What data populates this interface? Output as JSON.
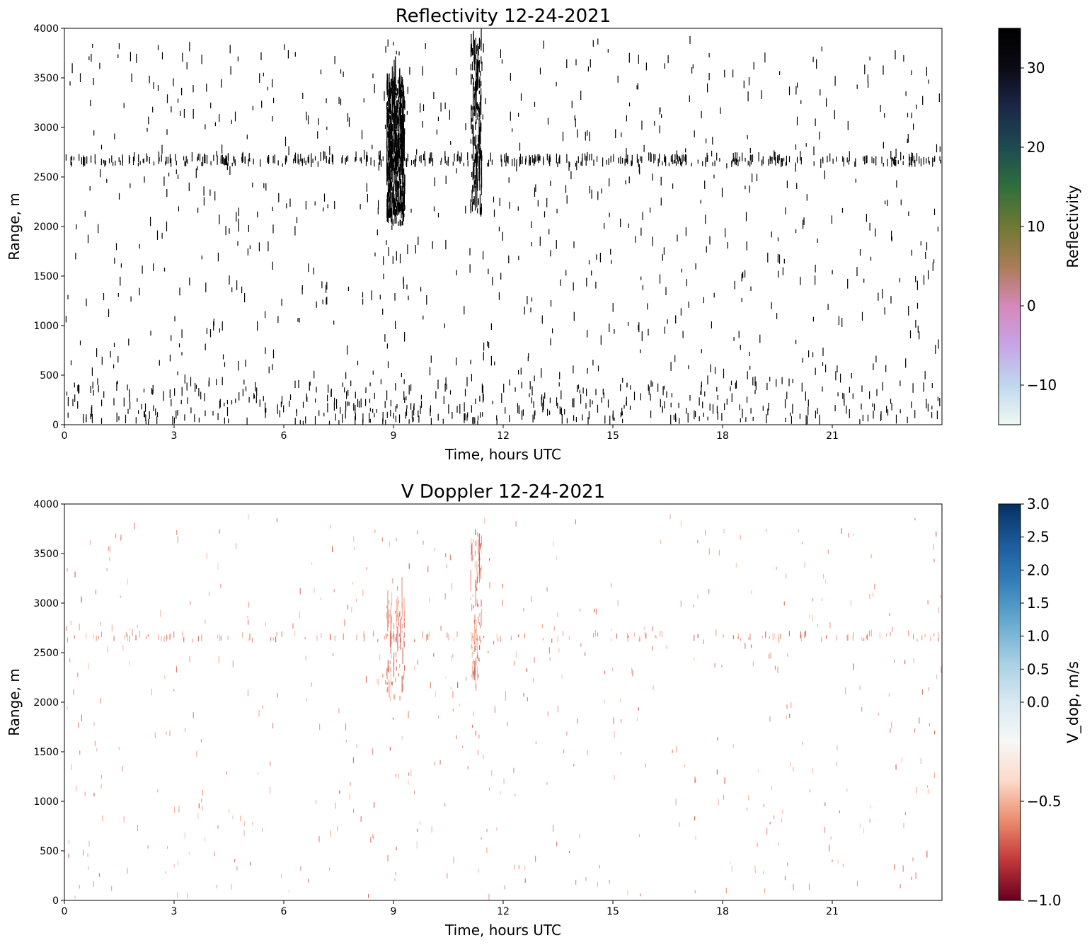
{
  "chart_data": [
    {
      "type": "heatmap",
      "title": "Reflectivity 12-24-2021",
      "xlabel": "Time, hours UTC",
      "ylabel": "Range, m",
      "xlim": [
        0,
        24
      ],
      "ylim": [
        0,
        4000
      ],
      "xticks": [
        "0",
        "3",
        "6",
        "9",
        "12",
        "15",
        "18",
        "21"
      ],
      "yticks": [
        "0",
        "500",
        "1000",
        "1500",
        "2000",
        "2500",
        "3000",
        "3500",
        "4000"
      ],
      "colorbar": {
        "label": "Reflectivity",
        "colormap": "cubehelix_r",
        "min": -15,
        "max": 35,
        "ticks": [
          "−10",
          "0",
          "10",
          "20",
          "30"
        ],
        "tick_values": [
          -10,
          0,
          10,
          20,
          30
        ],
        "colors": [
          "#edf8f2",
          "#c0d8ee",
          "#c5a4e6",
          "#d688b9",
          "#a97c55",
          "#6f7934",
          "#2f6f3b",
          "#1d4b52",
          "#1b2748",
          "#0b0a14",
          "#000000"
        ]
      },
      "features": [
        {
          "name": "dense echo column",
          "time_start": 8.8,
          "time_end": 9.3,
          "range_start": 2000,
          "range_end": 3450
        },
        {
          "name": "echo column",
          "time_start": 11.1,
          "time_end": 11.4,
          "range_start": 2100,
          "range_end": 3850
        },
        {
          "name": "horizontal band",
          "time_start": 0,
          "time_end": 24,
          "range_start": 2600,
          "range_end": 2670
        },
        {
          "name": "near-surface clutter",
          "time_start": 0,
          "time_end": 24,
          "range_start": 0,
          "range_end": 400
        },
        {
          "name": "sparse scattered echoes",
          "time_start": 0,
          "time_end": 24,
          "range_start": 0,
          "range_end": 3850
        }
      ]
    },
    {
      "type": "heatmap",
      "title": "V Doppler 12-24-2021",
      "xlabel": "Time, hours UTC",
      "ylabel": "Range, m",
      "xlim": [
        0,
        24
      ],
      "ylim": [
        0,
        4000
      ],
      "xticks": [
        "0",
        "3",
        "6",
        "9",
        "12",
        "15",
        "18",
        "21"
      ],
      "yticks": [
        "0",
        "500",
        "1000",
        "1500",
        "2000",
        "2500",
        "3000",
        "3500",
        "4000"
      ],
      "colorbar": {
        "label": "V_dop, m/s",
        "colormap": "RdBu",
        "min": -1.0,
        "max": 3.0,
        "center": 0.0,
        "ticks": [
          "−1.0",
          "−0.5",
          "0.0",
          "0.5",
          "1.0",
          "1.5",
          "2.0",
          "2.5",
          "3.0"
        ],
        "tick_values": [
          -1.0,
          -0.5,
          0.0,
          0.5,
          1.0,
          1.5,
          2.0,
          2.5,
          3.0
        ],
        "colors": [
          "#67001f",
          "#c13639",
          "#ea8b6d",
          "#fbd9c7",
          "#f7f7f7",
          "#d8e9f1",
          "#a7d0e4",
          "#68abd0",
          "#3480b9",
          "#1c5a9c",
          "#053061"
        ]
      },
      "features": [
        {
          "name": "negative velocity column",
          "time_start": 8.8,
          "time_end": 9.3,
          "range_start": 2000,
          "range_end": 3000,
          "value_approx": -0.4
        },
        {
          "name": "negative velocity column",
          "time_start": 11.1,
          "time_end": 11.4,
          "range_start": 2100,
          "range_end": 3750,
          "value_approx": -0.4
        },
        {
          "name": "weak velocity band",
          "time_start": 0,
          "time_end": 24,
          "range_start": 2600,
          "range_end": 2670,
          "value_approx": -0.3
        },
        {
          "name": "sparse scattered returns",
          "time_start": 0,
          "time_end": 24,
          "range_start": 0,
          "range_end": 3850,
          "value_approx": -0.3
        }
      ]
    }
  ]
}
